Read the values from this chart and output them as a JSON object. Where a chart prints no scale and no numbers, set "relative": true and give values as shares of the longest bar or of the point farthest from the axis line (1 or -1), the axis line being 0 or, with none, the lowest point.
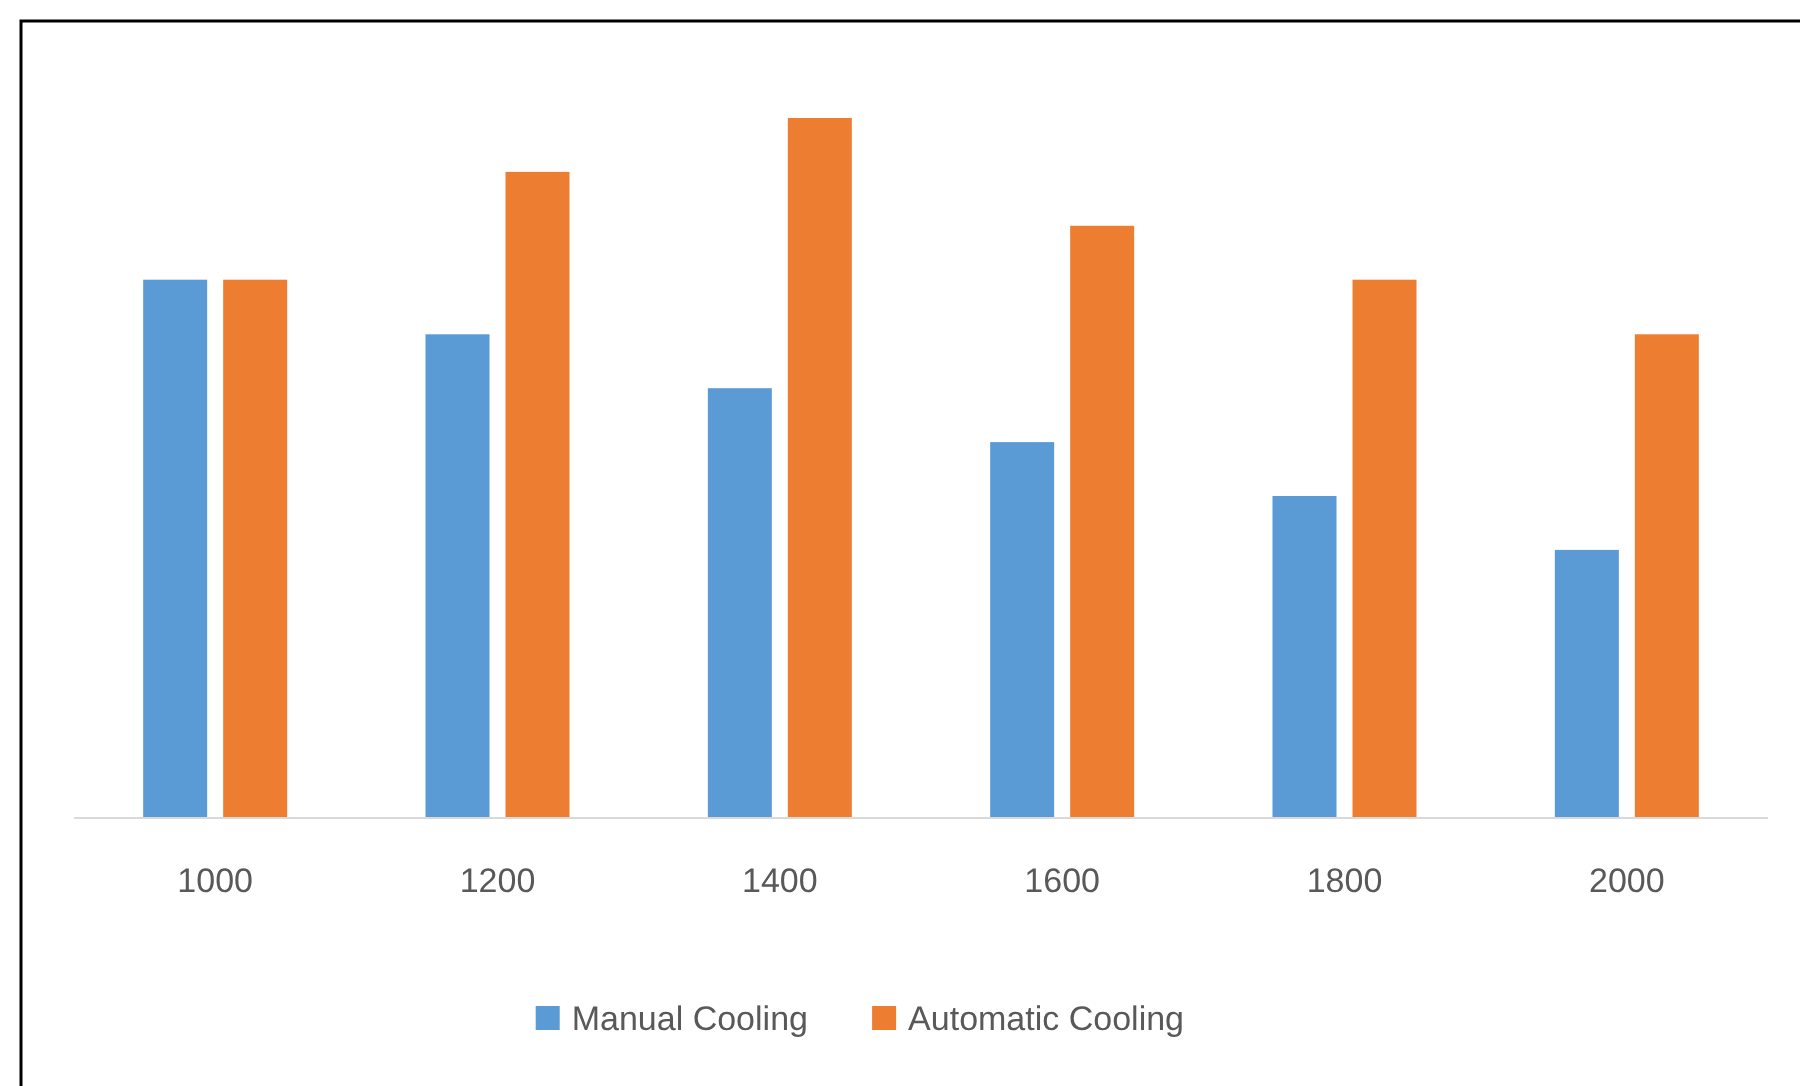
{
  "chart_data": {
    "type": "bar",
    "relative": true,
    "categories": [
      "1000",
      "1200",
      "1400",
      "1600",
      "1800",
      "2000"
    ],
    "series": [
      {
        "name": "Manual Cooling",
        "color": "#5b9bd5",
        "values": [
          0.769,
          0.691,
          0.614,
          0.537,
          0.46,
          0.383
        ]
      },
      {
        "name": "Automatic Cooling",
        "color": "#ed7d31",
        "values": [
          0.769,
          0.923,
          1,
          0.846,
          0.769,
          0.691
        ]
      }
    ],
    "legend": "bottom"
  }
}
